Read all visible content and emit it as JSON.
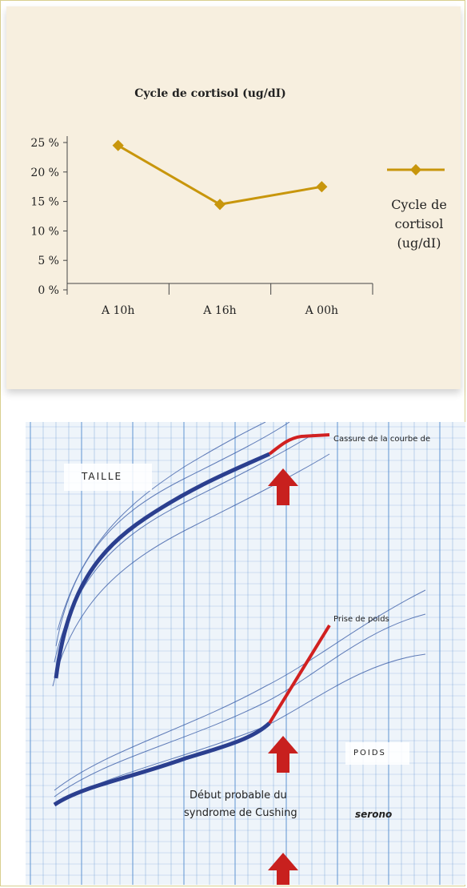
{
  "chart_data": {
    "type": "line",
    "title": "Cycle de cortisol (ug/dI)",
    "categories": [
      "A 10h",
      "A 16h",
      "A 00h"
    ],
    "series": [
      {
        "name": "Cycle de cortisol (ug/dI)",
        "values": [
          24.5,
          14.5,
          17.5
        ]
      }
    ],
    "y_ticks": [
      "25 %",
      "20 %",
      "15 %",
      "10 %",
      "5 %",
      "0 %"
    ],
    "ylim": [
      0,
      25
    ],
    "legend_position": "right",
    "grid": false,
    "colors": {
      "series": "#c8960c"
    }
  },
  "legend": {
    "line1": "Cycle de",
    "line2": "cortisol",
    "line3": "(ug/dI)"
  },
  "growth_chart": {
    "taille_label": "TAILLE",
    "poids_label": "POIDS",
    "cassure_label": "Cassure de la courbe de taille",
    "prise_label": "Prise de poids",
    "debut_line1": "Début probable du",
    "debut_line2": "syndrome de Cushing",
    "brand": "serono",
    "colors": {
      "curve": "#2b3f8f",
      "highlight": "#d12020",
      "grid": "#5b8fd0"
    }
  }
}
